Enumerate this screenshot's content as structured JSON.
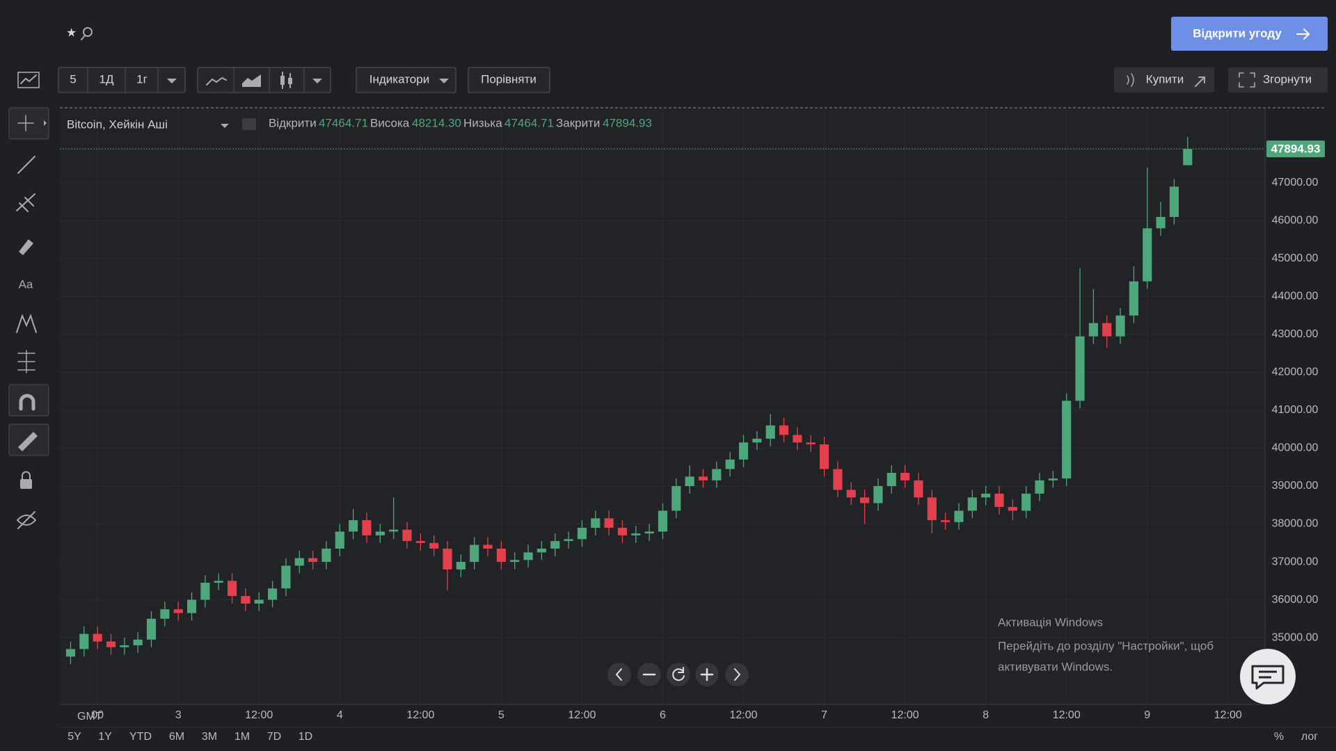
{
  "header": {
    "open_trade": "Відкрити угоду"
  },
  "toolbar": {
    "intervals": [
      "5",
      "1Д",
      "1г"
    ],
    "indicators": "Індикатори",
    "compare": "Порівняти",
    "buy": "Купити",
    "collapse": "Згорнути"
  },
  "chart_data": {
    "type": "candlestick",
    "title": "Bitcoin, Хейкін Аші",
    "ohlc_names": [
      "Відкрити",
      "Висока",
      "Низька",
      "Закрити"
    ],
    "ohlc_values": [
      47464.71,
      48214.3,
      47464.71,
      47894.93
    ],
    "ohlc_value_labels": [
      "47464.71",
      "48214.30",
      "47464.71",
      "47894.93"
    ],
    "x": [
      -16,
      -14,
      -12,
      -10,
      -8,
      -6,
      -4,
      -2,
      0,
      2,
      4,
      6,
      8,
      10,
      12,
      14,
      16,
      18,
      20,
      22,
      24,
      26,
      28,
      30,
      32,
      34,
      36,
      38,
      40,
      42,
      44,
      46,
      48,
      50,
      52,
      54,
      56,
      58,
      60,
      62,
      64,
      66,
      68,
      70,
      72,
      74,
      76,
      78,
      80,
      82,
      84,
      86,
      88,
      90,
      92,
      94,
      96,
      98,
      100,
      102,
      104,
      106,
      108,
      110,
      112,
      114,
      116,
      118,
      120,
      122,
      124,
      126,
      128,
      130,
      132,
      134,
      136,
      138,
      140,
      142,
      144,
      146,
      148,
      150
    ],
    "open": [
      34500,
      34700,
      35100,
      34900,
      34750,
      34800,
      34950,
      35500,
      35750,
      35650,
      36000,
      36450,
      36500,
      36100,
      35900,
      36000,
      36300,
      36900,
      37100,
      37000,
      37350,
      37800,
      38100,
      37700,
      37800,
      37850,
      37550,
      37500,
      37350,
      36800,
      37000,
      37450,
      37350,
      37000,
      37050,
      37250,
      37350,
      37550,
      37600,
      37900,
      38150,
      37900,
      37700,
      37750,
      37800,
      38350,
      39000,
      39250,
      39150,
      39450,
      39700,
      40150,
      40250,
      40600,
      40350,
      40150,
      40100,
      39450,
      38900,
      38700,
      38550,
      39000,
      39350,
      39150,
      38700,
      38100,
      38050,
      38350,
      38700,
      38800,
      38450,
      38350,
      38800,
      39150,
      39200,
      41250,
      42950,
      43300,
      42950,
      43500,
      44400,
      45800,
      46100,
      47464.71
    ],
    "high": [
      34900,
      35300,
      35300,
      35100,
      35000,
      35150,
      35700,
      35950,
      35950,
      36200,
      36650,
      36700,
      36700,
      36300,
      36200,
      36500,
      37100,
      37300,
      37300,
      37550,
      38000,
      38400,
      38300,
      38000,
      38700,
      38050,
      37750,
      37700,
      37550,
      37200,
      37650,
      37650,
      37550,
      37250,
      37450,
      37550,
      37750,
      37800,
      38100,
      38350,
      38350,
      38100,
      37950,
      38000,
      38550,
      39200,
      39550,
      39450,
      39650,
      39900,
      40350,
      40450,
      40900,
      40800,
      40550,
      40350,
      40300,
      39650,
      39100,
      38900,
      39200,
      39550,
      39550,
      39350,
      38900,
      38300,
      38550,
      38900,
      39000,
      39000,
      38650,
      39000,
      39350,
      39400,
      41450,
      44750,
      44200,
      43500,
      43700,
      44800,
      47400,
      46500,
      47100,
      48214.3
    ],
    "low": [
      34300,
      34500,
      34700,
      34550,
      34550,
      34600,
      34750,
      35300,
      35450,
      35450,
      35800,
      36250,
      35900,
      35700,
      35700,
      35800,
      36100,
      36700,
      36800,
      36800,
      37150,
      37600,
      37500,
      37500,
      37600,
      37350,
      37300,
      37150,
      36250,
      36600,
      36800,
      37150,
      36800,
      36800,
      36850,
      37050,
      37150,
      37350,
      37400,
      37700,
      37700,
      37500,
      37500,
      37550,
      37600,
      38150,
      38800,
      38950,
      38950,
      39250,
      39500,
      39950,
      40050,
      40150,
      39950,
      39900,
      39250,
      38700,
      38500,
      38000,
      38350,
      38800,
      38950,
      38500,
      37750,
      37850,
      37850,
      38150,
      38500,
      38250,
      38100,
      38150,
      38600,
      38950,
      39000,
      41050,
      42750,
      42650,
      42750,
      43300,
      44200,
      45600,
      45900,
      47464.71
    ],
    "close": [
      34700,
      35100,
      34900,
      34750,
      34800,
      34950,
      35500,
      35750,
      35650,
      36000,
      36450,
      36500,
      36100,
      35900,
      36000,
      36300,
      36900,
      37100,
      37000,
      37350,
      37800,
      38100,
      37700,
      37800,
      37850,
      37550,
      37500,
      37350,
      36800,
      37000,
      37450,
      37350,
      37000,
      37050,
      37250,
      37350,
      37550,
      37600,
      37900,
      38150,
      37900,
      37700,
      37750,
      37800,
      38350,
      39000,
      39250,
      39150,
      39450,
      39700,
      40150,
      40250,
      40600,
      40350,
      40150,
      40100,
      39450,
      38900,
      38700,
      38550,
      39000,
      39350,
      39150,
      38700,
      38100,
      38050,
      38350,
      38700,
      38800,
      38450,
      38350,
      38800,
      39150,
      39200,
      41250,
      42950,
      43300,
      42950,
      43500,
      44400,
      45800,
      46100,
      46900,
      47894.93
    ],
    "up_color": "#4ea67b",
    "down_color": "#e2404d",
    "xlim": [
      -17.6,
      161.5
    ],
    "xticks": [
      {
        "value": -12,
        "label": "00"
      },
      {
        "value": 0,
        "label": "3"
      },
      {
        "value": 12,
        "label": "12:00"
      },
      {
        "value": 24,
        "label": "4"
      },
      {
        "value": 36,
        "label": "12:00"
      },
      {
        "value": 48,
        "label": "5"
      },
      {
        "value": 60,
        "label": "12:00"
      },
      {
        "value": 72,
        "label": "6"
      },
      {
        "value": 84,
        "label": "12:00"
      },
      {
        "value": 96,
        "label": "7"
      },
      {
        "value": 108,
        "label": "12:00"
      },
      {
        "value": 120,
        "label": "8"
      },
      {
        "value": 132,
        "label": "12:00"
      },
      {
        "value": 144,
        "label": "9"
      },
      {
        "value": 156,
        "label": "12:00"
      }
    ],
    "x_axis_label": "GMT",
    "ylim": [
      33240,
      48980
    ],
    "yticks": [
      {
        "value": 35000,
        "label": "35000.00"
      },
      {
        "value": 36000,
        "label": "36000.00"
      },
      {
        "value": 37000,
        "label": "37000.00"
      },
      {
        "value": 38000,
        "label": "38000.00"
      },
      {
        "value": 39000,
        "label": "39000.00"
      },
      {
        "value": 40000,
        "label": "40000.00"
      },
      {
        "value": 41000,
        "label": "41000.00"
      },
      {
        "value": 42000,
        "label": "42000.00"
      },
      {
        "value": 43000,
        "label": "43000.00"
      },
      {
        "value": 44000,
        "label": "44000.00"
      },
      {
        "value": 45000,
        "label": "45000.00"
      },
      {
        "value": 46000,
        "label": "46000.00"
      },
      {
        "value": 47000,
        "label": "47000.00"
      }
    ],
    "grid": true,
    "last_price": 47894.93
  },
  "range_bar": {
    "ranges": [
      "5Y",
      "1Y",
      "YTD",
      "6M",
      "3M",
      "1M",
      "7D",
      "1D"
    ],
    "percent": "%",
    "log": "лог"
  },
  "watermark": {
    "title": "Активація Windows",
    "lines": [
      "Перейдіть до розділу \"Настройки\", щоб",
      "активувати Windows."
    ]
  }
}
